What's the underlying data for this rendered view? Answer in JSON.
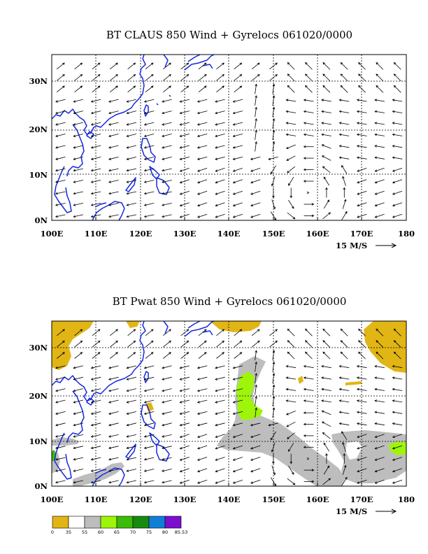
{
  "colors": {
    "coast": "#1528e0",
    "pwat_bins": [
      "#e1b514",
      "#ffffff",
      "#bdbdbd",
      "#9ef50a",
      "#3cbb08",
      "#168b0e",
      "#0f7fd6",
      "#7a0fcf"
    ]
  },
  "panels": [
    {
      "id": "top",
      "title": "BT CLAUS 850 Wind + Gyrelocs 061020/0000",
      "x_ticks": [
        "100E",
        "110E",
        "120E",
        "130E",
        "140E",
        "150E",
        "160E",
        "170E",
        "180"
      ],
      "y_ticks": [
        "0N",
        "10N",
        "20N",
        "30N"
      ],
      "scale_label": "15 M/S"
    },
    {
      "id": "bottom",
      "title": "BT Pwat 850 Wind + Gyrelocs 061020/0000",
      "x_ticks": [
        "100E",
        "110E",
        "120E",
        "130E",
        "140E",
        "150E",
        "160E",
        "170E",
        "180"
      ],
      "y_ticks": [
        "0N",
        "10N",
        "20N",
        "30N"
      ],
      "scale_label": "15 M/S"
    }
  ],
  "map_extent": {
    "lon": [
      100,
      180
    ],
    "lat": [
      0,
      36
    ]
  },
  "colorbar": {
    "labels": [
      "0",
      "35",
      "55",
      "60",
      "65",
      "70",
      "75",
      "80",
      "85.53"
    ]
  },
  "chart_data": [
    {
      "type": "vector-field",
      "title": "BT CLAUS 850 Wind + Gyrelocs 061020/0000",
      "xlim": [
        100,
        180
      ],
      "ylim": [
        0,
        36
      ],
      "x_ticks": [
        "100E",
        "110E",
        "120E",
        "130E",
        "140E",
        "150E",
        "160E",
        "170E",
        "180"
      ],
      "y_ticks": [
        "0N",
        "10N",
        "20N",
        "30N"
      ],
      "grid": true,
      "reference_vector": "15 M/S"
    },
    {
      "type": "filled-contour + vector-field",
      "title": "BT Pwat 850 Wind + Gyrelocs 061020/0000",
      "xlim": [
        100,
        180
      ],
      "ylim": [
        0,
        36
      ],
      "x_ticks": [
        "100E",
        "110E",
        "120E",
        "130E",
        "140E",
        "150E",
        "160E",
        "170E",
        "180"
      ],
      "y_ticks": [
        "0N",
        "10N",
        "20N",
        "30N"
      ],
      "grid": true,
      "reference_vector": "15 M/S",
      "contour_levels": [
        0,
        35,
        55,
        60,
        65,
        70,
        75,
        80,
        85.53
      ]
    }
  ]
}
